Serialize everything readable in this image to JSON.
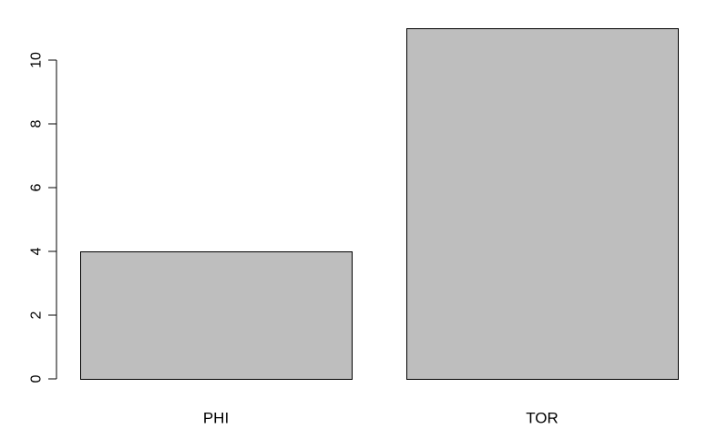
{
  "chart_data": {
    "type": "bar",
    "categories": [
      "PHI",
      "TOR"
    ],
    "values": [
      4,
      11
    ],
    "title": "",
    "xlabel": "",
    "ylabel": "",
    "ylim": [
      0,
      11
    ],
    "yticks": [
      0,
      2,
      4,
      6,
      8,
      10
    ],
    "grid": false,
    "bar_color": "#bebebe",
    "bar_border_color": "#000000"
  }
}
